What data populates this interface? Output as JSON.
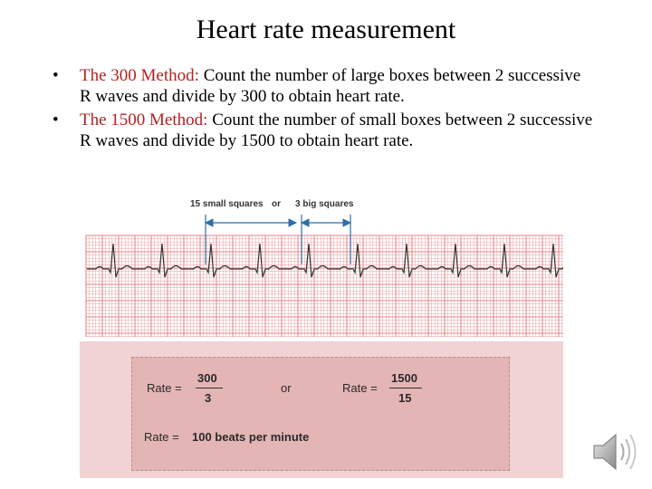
{
  "slide": {
    "title": "Heart rate measurement",
    "bullets": [
      {
        "marker": "•",
        "heading": "The 300 Method:",
        "text": " Count the number of large boxes between 2 successive R waves and divide by 300 to obtain heart rate."
      },
      {
        "marker": "•",
        "heading": "The 1500 Method:",
        "text": " Count the number of small boxes between 2 successive R waves and divide by 1500 to obtain heart rate."
      }
    ]
  },
  "figure": {
    "ecg_labels": {
      "small": "15 small squares",
      "or": "or",
      "big": "3 big squares"
    },
    "calculation": {
      "rate_label_1": "Rate =",
      "numerator_1": "300",
      "denominator_1": "3",
      "or": "or",
      "rate_label_2": "Rate =",
      "numerator_2": "1500",
      "denominator_2": "15",
      "result_label": "Rate =",
      "result_value": "100 beats per minute"
    }
  },
  "icons": {
    "audio": "speaker-icon"
  },
  "colors": {
    "bullet_heading": "#b22222",
    "ecg_grid": "#e58a8a",
    "ecg_trace": "#333333",
    "figure_background": "#f1d3d3",
    "calc_box": "#e4b5b5",
    "arrow": "#2f6fa8"
  }
}
